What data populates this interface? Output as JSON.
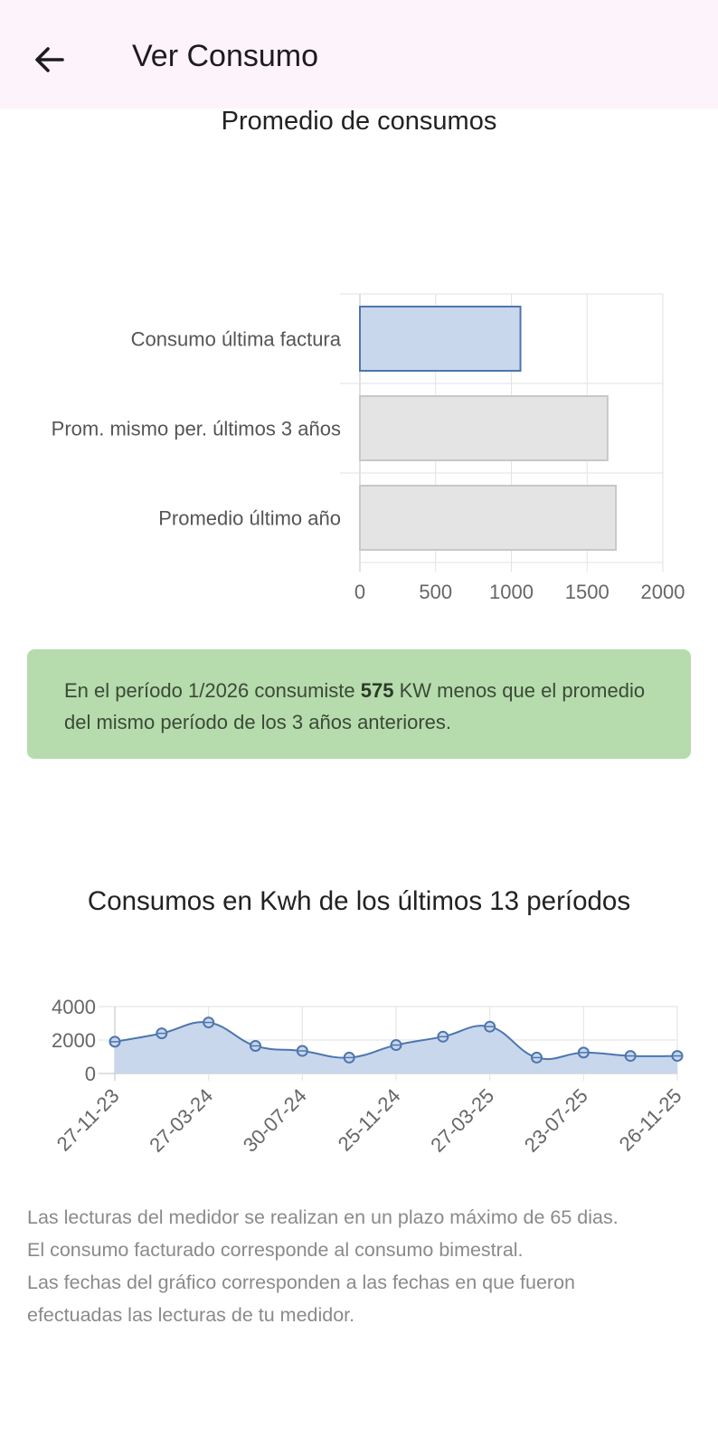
{
  "app_bar": {
    "title": "Ver Consumo",
    "back_icon": "arrow-left-icon"
  },
  "average_chart_title": "Promedio de consumos",
  "bar_chart": {
    "type": "bar",
    "orientation": "horizontal",
    "categories": [
      "Consumo última factura",
      "Prom. mismo per. últimos 3 años",
      "Promedio último año"
    ],
    "values": [
      1060,
      1635,
      1690
    ],
    "xlim": [
      0,
      2000
    ],
    "xticks": [
      "0",
      "500",
      "1000",
      "1500",
      "2000"
    ],
    "colors": {
      "highlight_fill": "#c9d7ec",
      "highlight_stroke": "#4d76ae",
      "default_fill": "#e4e4e4",
      "default_stroke": "#c8c8c8"
    },
    "grid": true
  },
  "info": {
    "prefix": "En el período 1/2026 consumiste ",
    "amount": "575",
    "suffix": " KW menos que el promedio del mismo período de los 3 años anteriores."
  },
  "line_chart_title": "Consumos en Kwh de los últimos 13 períodos",
  "chart_data": {
    "type": "area",
    "title": "Consumos en Kwh de los últimos 13 períodos",
    "x": [
      "27-11-23",
      "",
      "27-03-24",
      "",
      "30-07-24",
      "",
      "25-11-24",
      "",
      "27-03-25",
      "",
      "23-07-25",
      "",
      "26-11-25"
    ],
    "x_tick_labels": [
      "27-11-23",
      "27-03-24",
      "30-07-24",
      "25-11-24",
      "27-03-25",
      "23-07-25",
      "26-11-25"
    ],
    "series": [
      {
        "values": [
          1900,
          2400,
          3050,
          1650,
          1350,
          950,
          1700,
          2200,
          2800,
          950,
          1250,
          1050,
          1050
        ]
      }
    ],
    "ylim": [
      0,
      4000
    ],
    "yticks": [
      "0",
      "2000",
      "4000"
    ],
    "colors": {
      "line": "#4d76ae",
      "fill": "#c9d7ec"
    },
    "grid": true
  },
  "footnote": {
    "line1": "Las lecturas del medidor se realizan en un plazo máximo de 65 dias.",
    "line2": "El consumo facturado corresponde al consumo bimestral.",
    "line3": "Las fechas del gráfico corresponden a las fechas en que fueron",
    "line4": "efectuadas las lecturas de tu medidor."
  }
}
